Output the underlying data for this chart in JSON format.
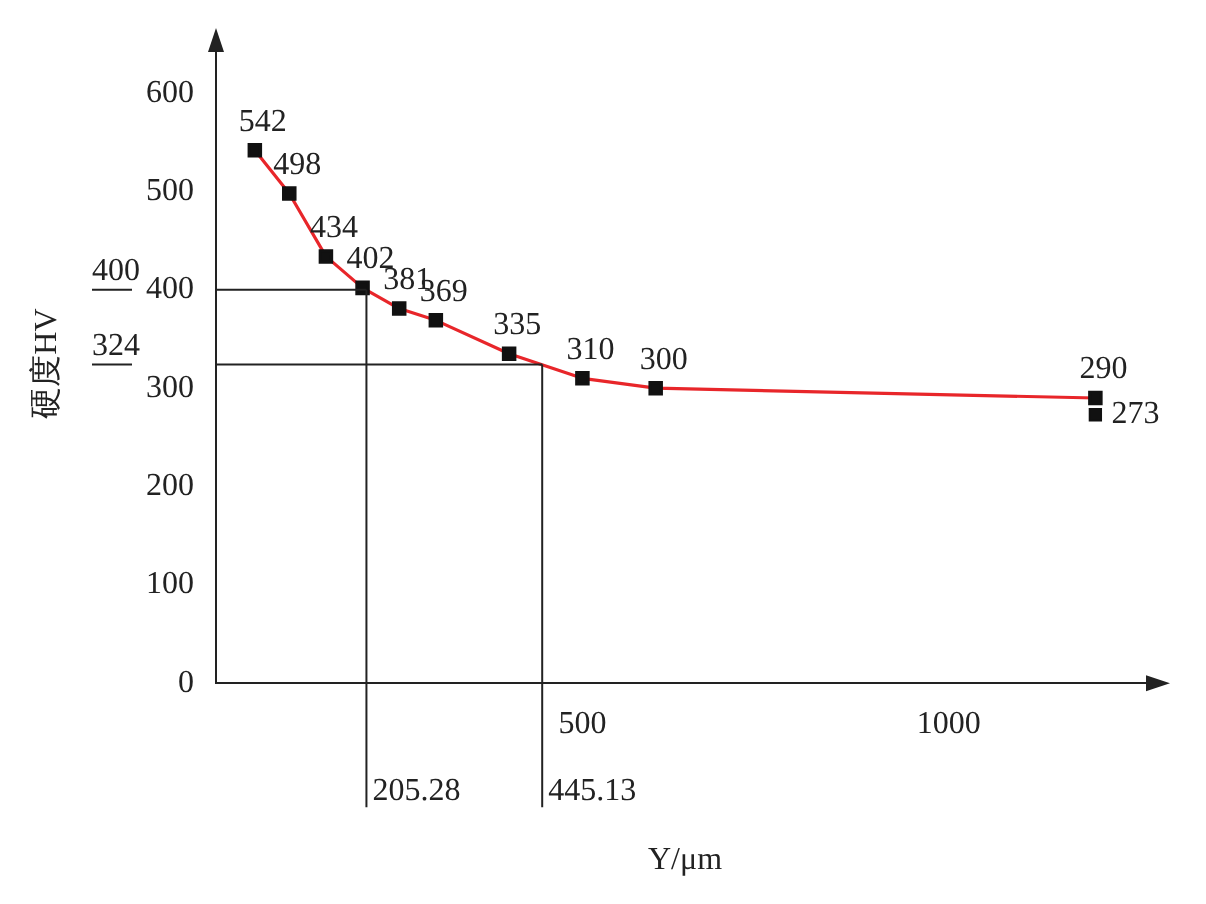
{
  "chart_data": {
    "type": "line",
    "xlabel": "Y/μm",
    "ylabel": "硬度HV",
    "x": [
      53,
      100,
      150,
      200,
      250,
      300,
      400,
      500,
      600,
      1200
    ],
    "series": [
      {
        "color": "#e8262a",
        "colors": [
          "#111111",
          "#111111",
          "#111111",
          "#111111",
          "#111111",
          "#111111",
          "#111111",
          "#111111",
          "#111111",
          "#111111"
        ],
        "values": [
          542,
          498,
          434,
          402,
          381,
          369,
          335,
          310,
          300,
          290
        ]
      },
      {
        "type": "scatter",
        "x": [
          1200
        ],
        "color": "#111111",
        "values": [
          273
        ]
      }
    ],
    "xlim": [
      0,
      1280
    ],
    "xticks": [
      500,
      1000
    ],
    "ylim": [
      0,
      650
    ],
    "yticks": [
      0,
      100,
      200,
      300,
      400,
      500,
      600
    ],
    "ref_lines": [
      {
        "axis": "y",
        "value": 400,
        "label": "400"
      },
      {
        "axis": "y",
        "value": 324,
        "label": "324"
      },
      {
        "axis": "x",
        "value": 205.28,
        "label": "205.28"
      },
      {
        "axis": "x",
        "value": 445.13,
        "label": "445.13"
      }
    ],
    "data_labels": true,
    "marker": "square",
    "grid": false,
    "legend": false
  }
}
